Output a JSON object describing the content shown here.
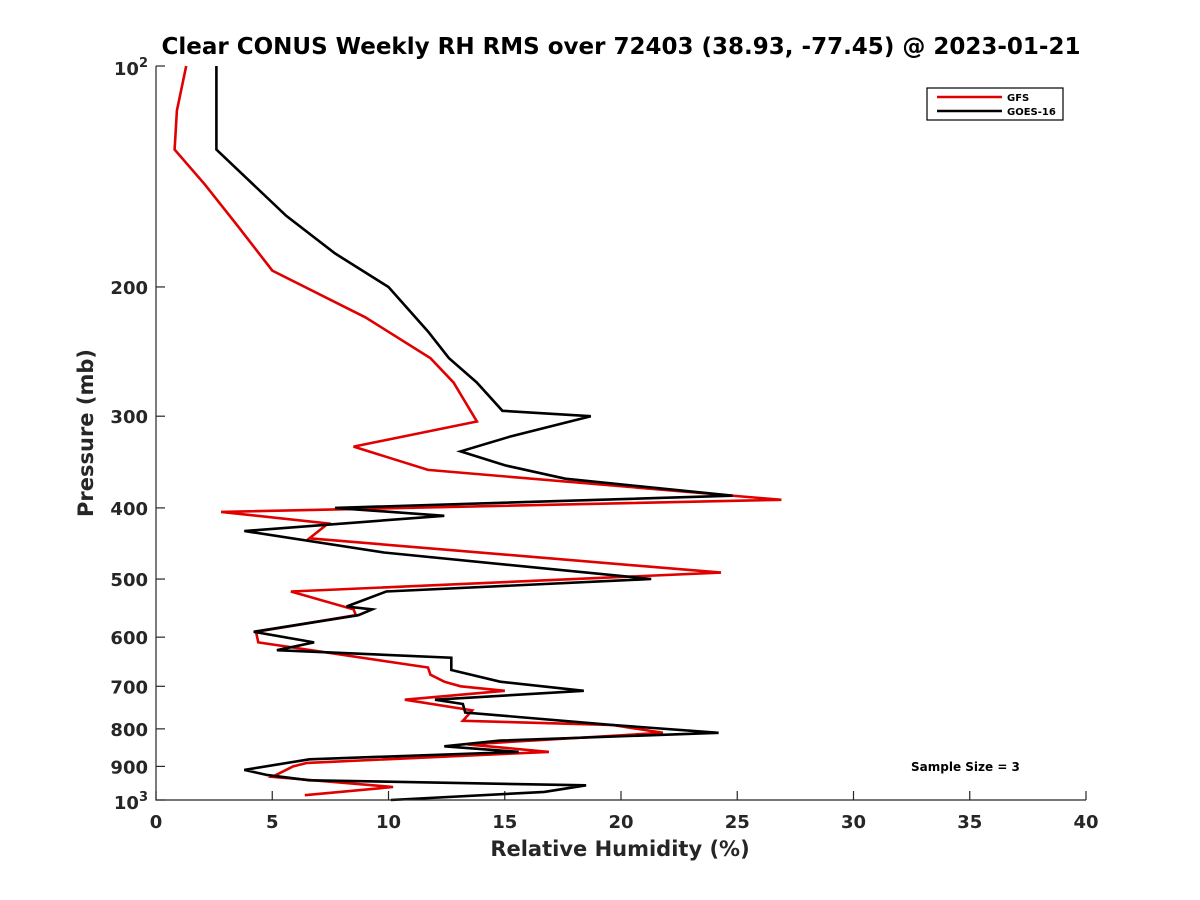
{
  "chart_data": {
    "type": "line",
    "title": "Clear CONUS Weekly RH RMS over 72403 (38.93, -77.45) @ 2023-01-21",
    "xlabel": "Relative Humidity (%)",
    "ylabel": "Pressure (mb)",
    "xlim": [
      0,
      40
    ],
    "ylim": [
      100,
      1000
    ],
    "y_scale": "log",
    "y_reversed": true,
    "x_ticks": [
      "0",
      "5",
      "10",
      "15",
      "20",
      "25",
      "30",
      "35",
      "40"
    ],
    "y_ticks": [
      {
        "value": 100,
        "base": "10",
        "exp": "2"
      },
      {
        "value": 200,
        "label": "200"
      },
      {
        "value": 300,
        "label": "300"
      },
      {
        "value": 400,
        "label": "400"
      },
      {
        "value": 500,
        "label": "500"
      },
      {
        "value": 600,
        "label": "600"
      },
      {
        "value": 700,
        "label": "700"
      },
      {
        "value": 800,
        "label": "800"
      },
      {
        "value": 900,
        "label": "900"
      },
      {
        "value": 1000,
        "base": "10",
        "exp": "3"
      }
    ],
    "legend_position": "top-right",
    "annotation": "Sample Size = 3",
    "series": [
      {
        "name": "GFS",
        "color": "#e00000",
        "x": [
          1.3,
          0.9,
          0.8,
          2.1,
          3.5,
          5.0,
          9.0,
          11.8,
          12.8,
          13.8,
          8.5,
          11.7,
          26.9,
          2.8,
          7.4,
          6.6,
          24.3,
          5.8,
          8.5,
          8.6,
          4.3,
          4.4,
          11.7,
          11.8,
          12.4,
          13.1,
          15.0,
          10.7,
          13.6,
          13.2,
          19.6,
          21.8,
          13.4,
          16.9,
          6.5,
          5.9,
          5.0,
          10.2,
          6.4
        ],
        "y": [
          100,
          115,
          130,
          145,
          165,
          190,
          220,
          250,
          270,
          305,
          330,
          355,
          390,
          405,
          420,
          440,
          490,
          520,
          550,
          560,
          590,
          610,
          660,
          675,
          690,
          700,
          710,
          730,
          755,
          780,
          790,
          810,
          840,
          860,
          890,
          900,
          930,
          960,
          985
        ]
      },
      {
        "name": "GOES-16",
        "color": "#000000",
        "x": [
          2.6,
          2.6,
          2.6,
          5.6,
          7.7,
          10.0,
          11.7,
          12.6,
          13.8,
          14.9,
          18.7,
          15.2,
          13.1,
          15.0,
          17.6,
          24.8,
          7.7,
          12.4,
          3.8,
          9.8,
          21.3,
          9.9,
          8.2,
          9.3,
          8.7,
          4.2,
          6.8,
          5.2,
          12.7,
          12.7,
          14.8,
          18.4,
          12.0,
          13.2,
          13.3,
          19.6,
          24.2,
          14.8,
          12.4,
          15.6,
          6.6,
          3.8,
          4.8,
          6.6,
          18.5,
          16.7,
          10.1
        ],
        "y": [
          100,
          115,
          130,
          160,
          180,
          200,
          230,
          250,
          270,
          295,
          300,
          320,
          335,
          350,
          365,
          385,
          400,
          410,
          430,
          460,
          500,
          520,
          545,
          550,
          560,
          590,
          610,
          625,
          640,
          665,
          690,
          710,
          730,
          740,
          760,
          790,
          810,
          830,
          845,
          860,
          880,
          910,
          925,
          940,
          955,
          975,
          1000
        ]
      }
    ]
  }
}
